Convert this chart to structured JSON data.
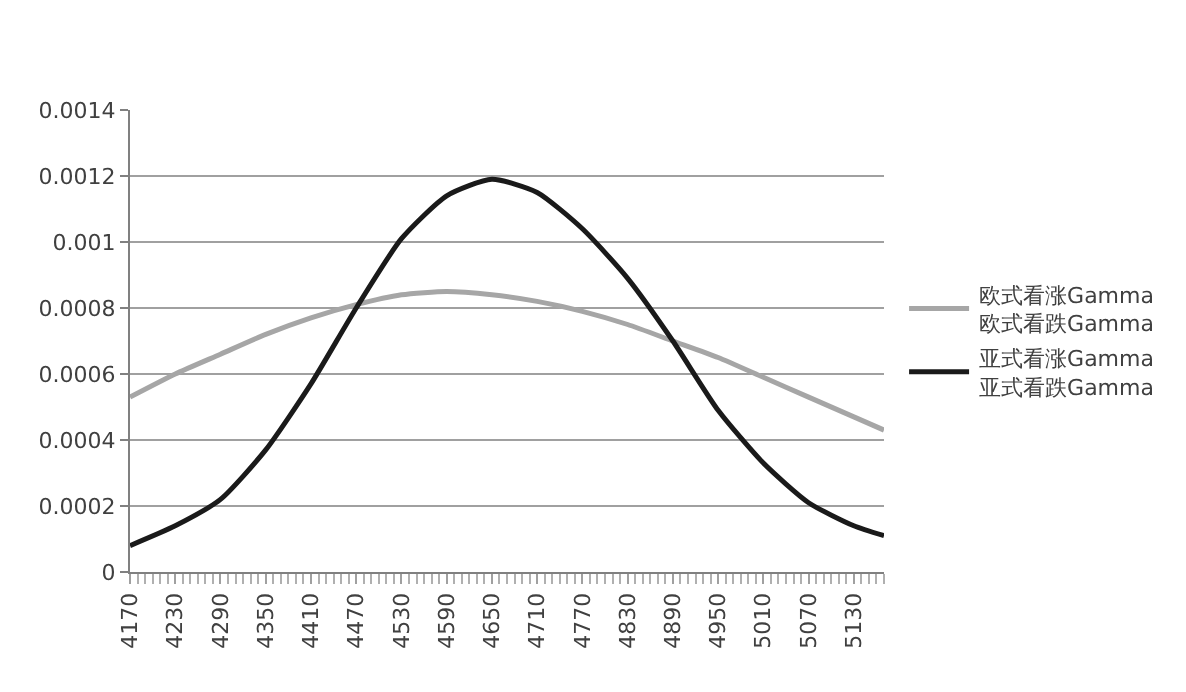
{
  "chart_data": {
    "type": "line",
    "x": [
      4170,
      4230,
      4290,
      4350,
      4410,
      4470,
      4530,
      4590,
      4650,
      4710,
      4770,
      4830,
      4890,
      4950,
      5010,
      5070,
      5130,
      5170
    ],
    "series": [
      {
        "name": "欧式看涨Gamma\n欧式看跌Gamma",
        "color": "#a6a6a6",
        "values": [
          0.00053,
          0.0006,
          0.00066,
          0.00072,
          0.00077,
          0.00081,
          0.00084,
          0.00085,
          0.00084,
          0.00082,
          0.00079,
          0.00075,
          0.0007,
          0.00065,
          0.00059,
          0.00053,
          0.00047,
          0.00043
        ]
      },
      {
        "name": "亚式看涨Gamma\n亚式看跌Gamma",
        "color": "#1a1a1a",
        "values": [
          8e-05,
          0.00014,
          0.00022,
          0.00037,
          0.00057,
          0.0008,
          0.00101,
          0.00114,
          0.00119,
          0.00115,
          0.00104,
          0.00089,
          0.0007,
          0.00049,
          0.00033,
          0.00021,
          0.00014,
          0.00011
        ]
      }
    ],
    "xlim": [
      4170,
      5170
    ],
    "xticks": [
      4170,
      4230,
      4290,
      4350,
      4410,
      4470,
      4530,
      4590,
      4650,
      4710,
      4770,
      4830,
      4890,
      4950,
      5010,
      5070,
      5130
    ],
    "ylim": [
      0,
      0.0014
    ],
    "yticks": [
      0,
      0.0002,
      0.0004,
      0.0006,
      0.0008,
      0.001,
      0.0012,
      0.0014
    ],
    "grid": "y",
    "legend": "right",
    "marker": "none",
    "line_style": "solid"
  }
}
